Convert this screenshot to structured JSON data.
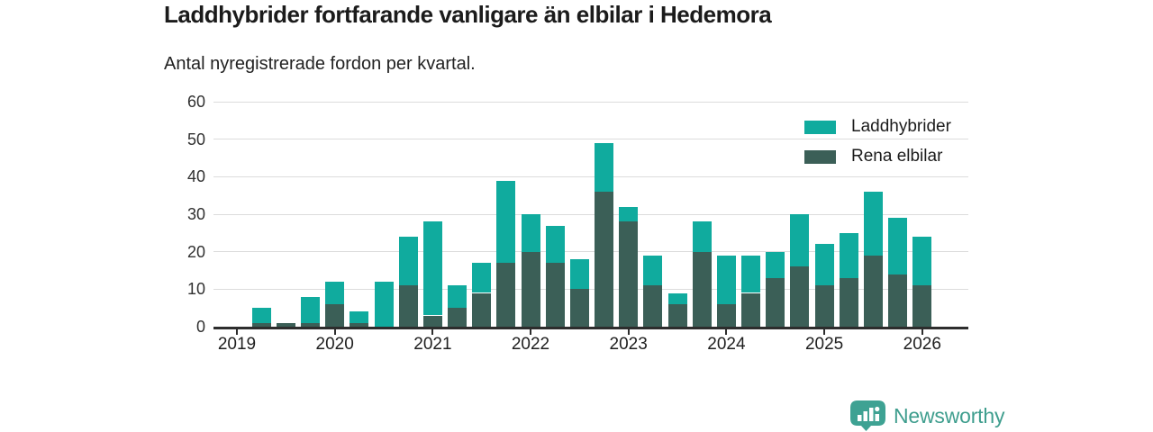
{
  "header": {
    "title": "Laddhybrider fortfarande vanligare än elbilar i Hedemora",
    "subtitle": "Antal nyregistrerade fordon per kvartal."
  },
  "chart_data": {
    "type": "bar",
    "stacked": true,
    "title": "Laddhybrider fortfarande vanligare än elbilar i Hedemora",
    "subtitle": "Antal nyregistrerade fordon per kvartal.",
    "xlabel": "",
    "ylabel": "",
    "ylim": [
      0,
      60
    ],
    "yticks": [
      0,
      10,
      20,
      30,
      40,
      50,
      60
    ],
    "grid": true,
    "legend_position": "top-right",
    "x_tick_labels": [
      "2019",
      "2020",
      "2021",
      "2022",
      "2023",
      "2024",
      "2025",
      "2026"
    ],
    "quarters": [
      "2019 Q1",
      "2019 Q2",
      "2019 Q3",
      "2019 Q4",
      "2020 Q1",
      "2020 Q2",
      "2020 Q3",
      "2020 Q4",
      "2021 Q1",
      "2021 Q2",
      "2021 Q3",
      "2021 Q4",
      "2022 Q1",
      "2022 Q2",
      "2022 Q3",
      "2022 Q4",
      "2023 Q1",
      "2023 Q2",
      "2023 Q3",
      "2023 Q4",
      "2024 Q1",
      "2024 Q2",
      "2024 Q3",
      "2024 Q4",
      "2025 Q1",
      "2025 Q2",
      "2025 Q3",
      "2025 Q4",
      "2026 Q1"
    ],
    "series": [
      {
        "name": "Laddhybrider",
        "color": "#10ab9e",
        "stack_order": "top",
        "values": [
          0,
          4,
          0,
          7,
          6,
          3,
          12,
          13,
          25,
          6,
          8,
          22,
          10,
          10,
          8,
          13,
          4,
          8,
          3,
          8,
          13,
          10,
          7,
          14,
          11,
          12,
          17,
          15,
          13
        ]
      },
      {
        "name": "Rena elbilar",
        "color": "#3b5f57",
        "stack_order": "bottom",
        "values": [
          0,
          1,
          1,
          1,
          6,
          1,
          0,
          11,
          3,
          5,
          9,
          17,
          20,
          17,
          10,
          36,
          28,
          11,
          6,
          20,
          6,
          9,
          13,
          16,
          11,
          13,
          19,
          14,
          11
        ]
      }
    ],
    "stacked_totals": [
      0,
      5,
      1,
      8,
      12,
      4,
      12,
      24,
      28,
      11,
      17,
      39,
      30,
      27,
      18,
      49,
      32,
      19,
      9,
      28,
      19,
      19,
      20,
      30,
      22,
      25,
      36,
      29,
      24
    ]
  },
  "footer": {
    "brand": "Newsworthy",
    "brand_color": "#3ea293"
  }
}
